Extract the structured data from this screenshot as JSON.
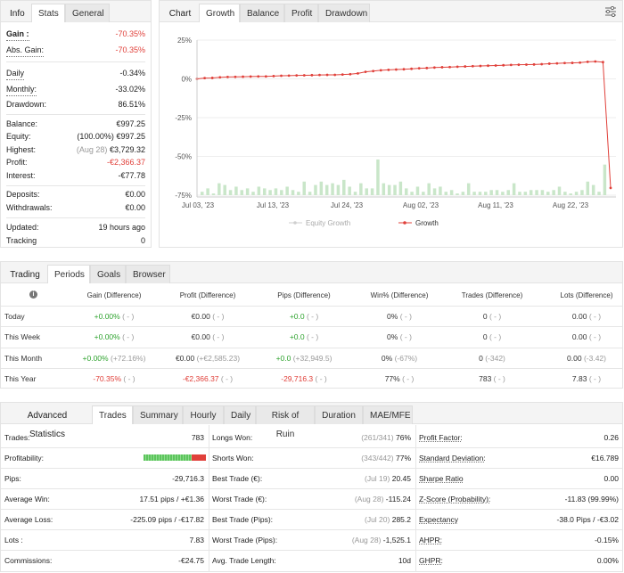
{
  "info_panel": {
    "tabs": [
      "Info",
      "Stats",
      "General"
    ],
    "rows": [
      {
        "label": "Gain :",
        "value": "-70.35%",
        "value_color": "red"
      },
      {
        "label": "Abs. Gain:",
        "value": "-70.35%",
        "value_color": "red"
      },
      {
        "label": "Daily",
        "value": "-0.34%"
      },
      {
        "label": "Monthly:",
        "value": "-33.02%"
      },
      {
        "label": "Drawdown:",
        "value": "86.51%"
      },
      {
        "label": "Balance:",
        "value": "€997.25"
      },
      {
        "label": "Equity:",
        "note": "(100.00%)",
        "value": "€997.25"
      },
      {
        "label": "Highest:",
        "note": "(Aug 28)",
        "value": "€3,729.32"
      },
      {
        "label": "Profit:",
        "value": "-€2,366.37",
        "value_color": "red"
      },
      {
        "label": "Interest:",
        "value": "-€77.78"
      },
      {
        "label": "Deposits:",
        "value": "€0.00"
      },
      {
        "label": "Withdrawals:",
        "value": "€0.00"
      },
      {
        "label": "Updated:",
        "value": "19 hours ago"
      },
      {
        "label": "Tracking",
        "value": "0"
      }
    ]
  },
  "chart_panel": {
    "tabs": [
      "Chart",
      "Growth",
      "Balance",
      "Profit",
      "Drawdown"
    ],
    "settings_icon": "sliders-icon",
    "legend": [
      "Equity Growth",
      "Growth"
    ]
  },
  "chart_data": {
    "type": "line",
    "x_tick_labels": [
      "Jul 03, '23",
      "Jul 13, '23",
      "Jul 24, '23",
      "Aug 02, '23",
      "Aug 11, '23",
      "Aug 22, '23"
    ],
    "y_tick_labels": [
      "25%",
      "0%",
      "-25%",
      "-50%",
      "-75%"
    ],
    "ylim": [
      -75,
      25
    ],
    "series": [
      {
        "name": "Growth",
        "color": "#e0403a",
        "values": [
          0,
          0.5,
          0.6,
          1,
          1.2,
          1.3,
          1.4,
          1.5,
          1.6,
          1.6,
          1.8,
          2,
          2.1,
          2.2,
          2.3,
          2.4,
          2.5,
          2.6,
          2.6,
          2.8,
          3,
          3.5,
          4.5,
          5,
          5.5,
          5.8,
          6,
          6.2,
          6.5,
          6.8,
          7,
          7.3,
          7.5,
          7.6,
          7.8,
          8,
          8.2,
          8.3,
          8.5,
          8.6,
          8.8,
          9,
          9.1,
          9.2,
          9.3,
          9.5,
          9.8,
          10,
          10.2,
          10.3,
          10.5,
          11,
          11.2,
          10.8,
          -70.35
        ]
      },
      {
        "name": "Equity Growth",
        "color": "#c9e6c9",
        "type": "bar",
        "values": [
          2,
          4,
          1,
          7,
          6,
          3,
          5,
          3,
          4,
          2,
          5,
          4,
          3,
          4,
          3,
          5,
          3,
          2,
          8,
          2,
          6,
          8,
          6,
          7,
          6,
          9,
          5,
          2,
          7,
          4,
          4,
          21,
          7,
          6,
          6,
          8,
          4,
          2,
          5,
          2,
          7,
          4,
          5,
          2,
          3,
          1,
          2,
          7,
          2,
          2,
          2,
          3,
          3,
          2,
          3,
          7,
          2,
          2,
          3,
          3,
          3,
          2,
          3,
          5,
          2,
          1,
          2,
          3,
          8,
          6,
          2,
          18
        ]
      }
    ]
  },
  "periods_panel": {
    "tabs": [
      "Trading",
      "Periods",
      "Goals",
      "Browser"
    ],
    "info_icon": "info-icon",
    "columns": [
      "Gain (Difference)",
      "Profit (Difference)",
      "Pips (Difference)",
      "Win% (Difference)",
      "Trades (Difference)",
      "Lots (Difference)"
    ],
    "rows": [
      {
        "label": "Today",
        "cells": [
          {
            "v": "+0.00%",
            "c": "green",
            "d": "( - )"
          },
          {
            "v": "€0.00",
            "d": "( - )"
          },
          {
            "v": "+0.0",
            "c": "green",
            "d": "( - )"
          },
          {
            "v": "0%",
            "d": "( - )"
          },
          {
            "v": "0",
            "d": "( - )"
          },
          {
            "v": "0.00",
            "d": "( - )"
          }
        ]
      },
      {
        "label": "This Week",
        "cells": [
          {
            "v": "+0.00%",
            "c": "green",
            "d": "( - )"
          },
          {
            "v": "€0.00",
            "d": "( - )"
          },
          {
            "v": "+0.0",
            "c": "green",
            "d": "( - )"
          },
          {
            "v": "0%",
            "d": "( - )"
          },
          {
            "v": "0",
            "d": "( - )"
          },
          {
            "v": "0.00",
            "d": "( - )"
          }
        ]
      },
      {
        "label": "This Month",
        "cells": [
          {
            "v": "+0.00%",
            "c": "green",
            "d": "(+72.16%)"
          },
          {
            "v": "€0.00",
            "d": "(+€2,585.23)"
          },
          {
            "v": "+0.0",
            "c": "green",
            "d": "(+32,949.5)"
          },
          {
            "v": "0%",
            "d": "(-67%)"
          },
          {
            "v": "0",
            "d": "(-342)"
          },
          {
            "v": "0.00",
            "d": "(-3.42)"
          }
        ]
      },
      {
        "label": "This Year",
        "cells": [
          {
            "v": "-70.35%",
            "c": "red",
            "d": "( - )"
          },
          {
            "v": "-€2,366.37",
            "c": "red",
            "d": "( - )"
          },
          {
            "v": "-29,716.3",
            "c": "red",
            "d": "( - )"
          },
          {
            "v": "77%",
            "d": "( - )"
          },
          {
            "v": "783",
            "d": "( - )"
          },
          {
            "v": "7.83",
            "d": "( - )"
          }
        ]
      }
    ]
  },
  "advanced_panel": {
    "tabs": [
      "Advanced Statistics",
      "Trades",
      "Summary",
      "Hourly",
      "Daily",
      "Risk of Ruin",
      "Duration",
      "MAE/MFE"
    ],
    "profitability": {
      "won_fraction": 0.77
    },
    "col1": [
      {
        "label": "Trades:",
        "value": "783"
      },
      {
        "label": "Profitability:",
        "value": ""
      },
      {
        "label": "Pips:",
        "value": "-29,716.3"
      },
      {
        "label": "Average Win:",
        "value": "17.51 pips / +€1.36"
      },
      {
        "label": "Average Loss:",
        "value": "-225.09 pips / -€17.82"
      },
      {
        "label": "Lots :",
        "value": "7.83"
      },
      {
        "label": "Commissions:",
        "value": "-€24.75"
      }
    ],
    "col2": [
      {
        "label": "Longs Won:",
        "note": "(261/341)",
        "value": "76%"
      },
      {
        "label": "Shorts Won:",
        "note": "(343/442)",
        "value": "77%"
      },
      {
        "label": "Best Trade (€):",
        "note": "(Jul 19)",
        "value": "20.45"
      },
      {
        "label": "Worst Trade (€):",
        "note": "(Aug 28)",
        "value": "-115.24"
      },
      {
        "label": "Best Trade (Pips):",
        "note": "(Jul 20)",
        "value": "285.2"
      },
      {
        "label": "Worst Trade (Pips):",
        "note": "(Aug 28)",
        "value": "-1,525.1"
      },
      {
        "label": "Avg. Trade Length:",
        "value": "10d"
      }
    ],
    "col3": [
      {
        "label": "Profit Factor:",
        "value": "0.26"
      },
      {
        "label": "Standard Deviation:",
        "value": "€16.789"
      },
      {
        "label": "Sharpe Ratio",
        "value": "0.00"
      },
      {
        "label": "Z-Score (Probability):",
        "value": "-11.83 (99.99%)"
      },
      {
        "label": "Expectancy",
        "value": "-38.0 Pips / -€3.02"
      },
      {
        "label": "AHPR:",
        "value": "-0.15%"
      },
      {
        "label": "GHPR:",
        "value": "0.00%"
      }
    ]
  }
}
